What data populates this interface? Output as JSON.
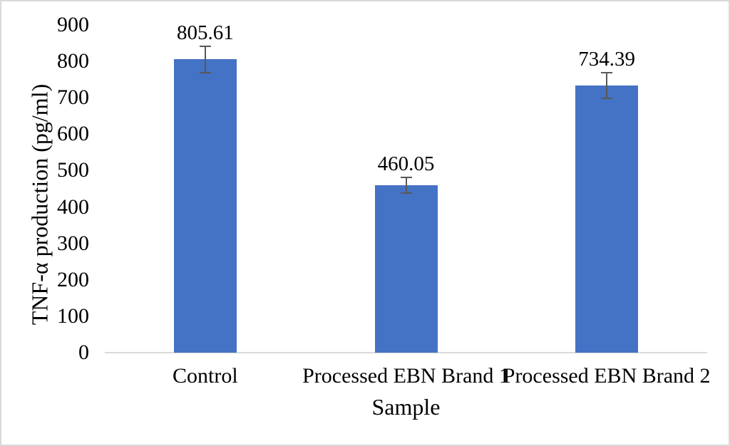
{
  "chart_data": {
    "type": "bar",
    "title": "",
    "xlabel": "Sample",
    "ylabel": "TNF-α production (pg/ml)",
    "categories": [
      "Control",
      "Processed EBN Brand 1",
      "Processed EBN Brand 2"
    ],
    "values": [
      805.61,
      460.05,
      734.39
    ],
    "data_labels": [
      "805.61",
      "460.05",
      "734.39"
    ],
    "error_bars": [
      38,
      23,
      37
    ],
    "ylim": [
      0,
      900
    ],
    "yticks": [
      0,
      100,
      200,
      300,
      400,
      500,
      600,
      700,
      800,
      900
    ],
    "grid": false,
    "legend_position": "none",
    "colors": {
      "bar": "#4472c4",
      "error_bar": "#595959",
      "axis_line": "#d9d9d9",
      "text": "#000000",
      "background": "#ffffff",
      "frame_border": "#d9d9d9"
    }
  }
}
